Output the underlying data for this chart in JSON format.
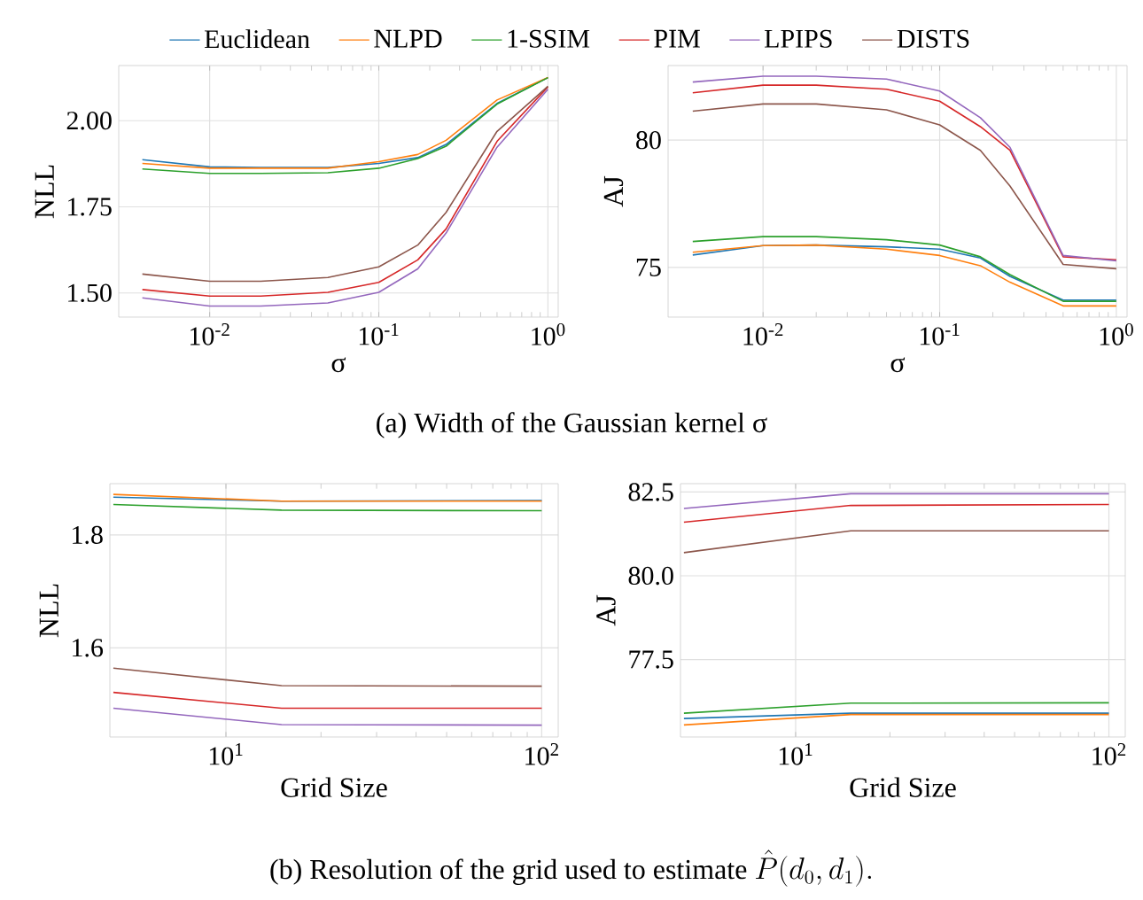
{
  "chart_data": [
    {
      "type": "line",
      "xlabel": "σ",
      "ylabel": "NLL",
      "log": "x",
      "grid": true,
      "legend": "top",
      "annotations": [
        "(a) Width of the Gaussian kernel σ"
      ],
      "x": [
        0.004,
        0.01,
        0.02,
        0.05,
        0.1,
        0.17,
        0.25,
        0.5,
        1
      ],
      "xlim": [
        0.0029,
        1.15
      ],
      "ylim": [
        1.43,
        2.16
      ],
      "xticks": [
        {
          "value": 0.01,
          "label": "10$^{-2}$"
        },
        {
          "value": 0.1,
          "label": "10$^{-1}$"
        },
        {
          "value": 1,
          "label": "10$^{0}$"
        }
      ],
      "yticks": [
        {
          "value": 1.5,
          "label": "1.50"
        },
        {
          "value": 1.75,
          "label": "1.75"
        },
        {
          "value": 2.0,
          "label": "2.00"
        }
      ],
      "series": [
        {
          "name": "Euclidean",
          "color": "#1f77b4",
          "values": [
            1.887,
            1.866,
            1.864,
            1.864,
            1.876,
            1.893,
            1.931,
            2.05,
            2.125
          ]
        },
        {
          "name": "NLPD",
          "color": "#ff7f0e",
          "values": [
            1.876,
            1.862,
            1.862,
            1.862,
            1.881,
            1.902,
            1.943,
            2.06,
            2.125
          ]
        },
        {
          "name": "1-SSIM",
          "color": "#2ca02c",
          "values": [
            1.86,
            1.847,
            1.847,
            1.849,
            1.862,
            1.89,
            1.926,
            2.048,
            2.125
          ]
        },
        {
          "name": "PIM",
          "color": "#d62728",
          "values": [
            1.51,
            1.491,
            1.491,
            1.502,
            1.531,
            1.596,
            1.686,
            1.94,
            2.098
          ]
        },
        {
          "name": "LPIPS",
          "color": "#9467bd",
          "values": [
            1.486,
            1.462,
            1.462,
            1.471,
            1.502,
            1.57,
            1.674,
            1.923,
            2.091
          ]
        },
        {
          "name": "DISTS",
          "color": "#8c564b",
          "values": [
            1.555,
            1.534,
            1.534,
            1.545,
            1.576,
            1.639,
            1.734,
            1.969,
            2.1
          ]
        }
      ]
    },
    {
      "type": "line",
      "xlabel": "σ",
      "ylabel": "AJ",
      "log": "x",
      "grid": true,
      "x": [
        0.004,
        0.01,
        0.02,
        0.05,
        0.1,
        0.17,
        0.25,
        0.5,
        1
      ],
      "xlim": [
        0.0029,
        1.15
      ],
      "ylim": [
        73.05,
        82.93
      ],
      "xticks": [
        {
          "value": 0.01,
          "label": "10$^{-2}$"
        },
        {
          "value": 0.1,
          "label": "10$^{-1}$"
        },
        {
          "value": 1,
          "label": "10$^{0}$"
        }
      ],
      "yticks": [
        75,
        80
      ],
      "series": [
        {
          "color": "#1f77b4",
          "values": [
            75.49,
            75.86,
            75.88,
            75.81,
            75.72,
            75.37,
            74.65,
            73.72,
            73.72
          ]
        },
        {
          "color": "#ff7f0e",
          "values": [
            75.6,
            75.86,
            75.88,
            75.72,
            75.47,
            75.07,
            74.42,
            73.49,
            73.49
          ]
        },
        {
          "color": "#2ca02c",
          "values": [
            76.02,
            76.21,
            76.21,
            76.09,
            75.88,
            75.42,
            74.72,
            73.67,
            73.67
          ]
        },
        {
          "color": "#d62728",
          "values": [
            81.86,
            82.16,
            82.16,
            82.0,
            81.53,
            80.53,
            79.6,
            75.42,
            75.3
          ]
        },
        {
          "color": "#9467bd",
          "values": [
            82.28,
            82.51,
            82.51,
            82.4,
            81.93,
            80.88,
            79.72,
            75.47,
            75.26
          ]
        },
        {
          "color": "#8c564b",
          "values": [
            81.14,
            81.42,
            81.42,
            81.19,
            80.6,
            79.6,
            78.2,
            75.12,
            74.95
          ]
        }
      ]
    },
    {
      "type": "line",
      "xlabel": "Grid Size",
      "ylabel": "NLL",
      "log": "x",
      "grid": true,
      "annotations": [
        "(b) Resolution of the grid used to estimate",
        "\\hat{P}(d_0, d_1)."
      ],
      "x": [
        4.4,
        15,
        100
      ],
      "xlim": [
        4.29,
        112.8
      ],
      "ylim": [
        1.442,
        1.891
      ],
      "xticks": [
        {
          "value": 10,
          "label": "10$^{1}$"
        },
        {
          "value": 100,
          "label": "10$^{2}$"
        }
      ],
      "yticks": [
        1.6,
        1.8
      ],
      "series": [
        {
          "color": "#1f77b4",
          "values": [
            1.867,
            1.86,
            1.861
          ]
        },
        {
          "color": "#ff7f0e",
          "values": [
            1.872,
            1.86,
            1.86
          ]
        },
        {
          "color": "#2ca02c",
          "values": [
            1.854,
            1.844,
            1.843
          ]
        },
        {
          "color": "#d62728",
          "values": [
            1.521,
            1.493,
            1.493
          ]
        },
        {
          "color": "#9467bd",
          "values": [
            1.493,
            1.464,
            1.463
          ]
        },
        {
          "color": "#8c564b",
          "values": [
            1.564,
            1.533,
            1.532
          ]
        }
      ]
    },
    {
      "type": "line",
      "xlabel": "Grid Size",
      "ylabel": "AJ",
      "log": "x",
      "grid": true,
      "x": [
        4.4,
        15,
        100
      ],
      "xlim": [
        4.29,
        112.8
      ],
      "ylim": [
        75.19,
        82.75
      ],
      "xticks": [
        {
          "value": 10,
          "label": "10$^{1}$"
        },
        {
          "value": 100,
          "label": "10$^{2}$"
        }
      ],
      "yticks": [
        {
          "value": 77.5,
          "label": "77.5"
        },
        {
          "value": 80.0,
          "label": "80.0"
        },
        {
          "value": 82.5,
          "label": "82.5"
        }
      ],
      "series": [
        {
          "color": "#1f77b4",
          "values": [
            75.74,
            75.9,
            75.9
          ]
        },
        {
          "color": "#ff7f0e",
          "values": [
            75.55,
            75.86,
            75.86
          ]
        },
        {
          "color": "#2ca02c",
          "values": [
            75.9,
            76.2,
            76.21
          ]
        },
        {
          "color": "#d62728",
          "values": [
            81.6,
            82.1,
            82.13
          ]
        },
        {
          "color": "#9467bd",
          "values": [
            82.01,
            82.45,
            82.45
          ]
        },
        {
          "color": "#8c564b",
          "values": [
            80.69,
            81.34,
            81.34
          ]
        }
      ]
    }
  ]
}
